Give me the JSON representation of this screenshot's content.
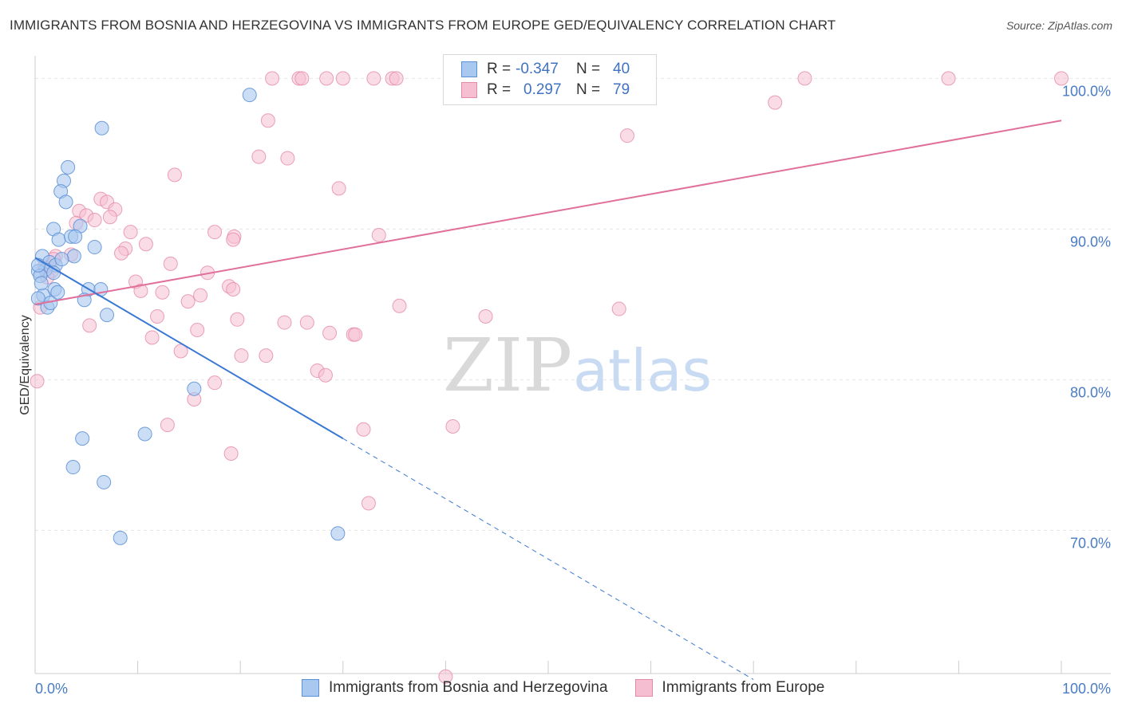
{
  "title": "IMMIGRANTS FROM BOSNIA AND HERZEGOVINA VS IMMIGRANTS FROM EUROPE GED/EQUIVALENCY CORRELATION CHART",
  "source": "Source: ZipAtlas.com",
  "watermark": {
    "zip": "ZIP",
    "atlas": "atlas"
  },
  "legend": {
    "rows": [
      {
        "r_label": "R =",
        "r_value": "-0.347",
        "n_label": "N =",
        "n_value": "40"
      },
      {
        "r_label": "R =",
        "r_value": "0.297",
        "n_label": "N =",
        "n_value": "79"
      }
    ]
  },
  "bottom_legend": {
    "blue": "Immigrants from Bosnia and Herzegovina",
    "pink": "Immigrants from Europe"
  },
  "colors": {
    "blue_fill": "#a9c8f0",
    "blue_stroke": "#5b8fd6",
    "blue_line": "#3a78d4",
    "pink_fill": "#f6bfd1",
    "pink_stroke": "#e589a8",
    "pink_line": "#e0709a",
    "grid": "#e6e6e6",
    "axis_text": "#4a7cc4"
  },
  "chart_data": {
    "type": "scatter",
    "title": "IMMIGRANTS FROM BOSNIA AND HERZEGOVINA VS IMMIGRANTS FROM EUROPE GED/EQUIVALENCY CORRELATION CHART",
    "xlabel": "",
    "ylabel": "GED/Equivalency",
    "xlim": [
      0,
      100
    ],
    "ylim": [
      60.5,
      101.5
    ],
    "x_tick_labels": [
      "0.0%",
      "100.0%"
    ],
    "y_ticks": [
      70,
      80,
      90,
      100
    ],
    "y_tick_labels": [
      "70.0%",
      "80.0%",
      "90.0%",
      "100.0%"
    ],
    "grid": true,
    "legend_position": "top-center",
    "series": [
      {
        "name": "Immigrants from Bosnia and Herzegovina",
        "color": "#a9c8f0",
        "r": -0.347,
        "n": 40,
        "trend": {
          "x0": 0.0,
          "y0": 88.1,
          "x1": 30.0,
          "y1": 76.1,
          "dash_to_x": 70.0,
          "dash_to_y": 60.1
        },
        "points": [
          [
            20.9,
            98.9
          ],
          [
            6.5,
            96.7
          ],
          [
            3.2,
            94.1
          ],
          [
            2.8,
            93.2
          ],
          [
            2.5,
            92.5
          ],
          [
            3.0,
            91.8
          ],
          [
            1.8,
            90.0
          ],
          [
            4.4,
            90.2
          ],
          [
            2.3,
            89.3
          ],
          [
            3.5,
            89.5
          ],
          [
            3.9,
            89.5
          ],
          [
            5.8,
            88.8
          ],
          [
            3.8,
            88.2
          ],
          [
            0.7,
            88.2
          ],
          [
            1.4,
            87.8
          ],
          [
            2.0,
            87.6
          ],
          [
            1.0,
            87.3
          ],
          [
            1.8,
            87.1
          ],
          [
            0.3,
            87.2
          ],
          [
            0.5,
            86.9
          ],
          [
            1.9,
            86.0
          ],
          [
            2.2,
            85.8
          ],
          [
            5.2,
            86.0
          ],
          [
            6.4,
            86.0
          ],
          [
            0.8,
            85.6
          ],
          [
            0.3,
            85.4
          ],
          [
            4.8,
            85.3
          ],
          [
            1.2,
            84.8
          ],
          [
            7.0,
            84.3
          ],
          [
            15.5,
            79.4
          ],
          [
            10.7,
            76.4
          ],
          [
            4.6,
            76.1
          ],
          [
            3.7,
            74.2
          ],
          [
            6.7,
            73.2
          ],
          [
            8.3,
            69.5
          ],
          [
            29.5,
            69.8
          ],
          [
            0.3,
            87.6
          ],
          [
            2.6,
            88.0
          ],
          [
            0.6,
            86.4
          ],
          [
            1.5,
            85.1
          ]
        ]
      },
      {
        "name": "Immigrants from Europe",
        "color": "#f6bfd1",
        "r": 0.297,
        "n": 79,
        "trend": {
          "x0": 0.0,
          "y0": 85.0,
          "x1": 100.0,
          "y1": 97.2
        },
        "points": [
          [
            23.1,
            100.0
          ],
          [
            25.7,
            100.0
          ],
          [
            26.0,
            100.0
          ],
          [
            28.4,
            100.0
          ],
          [
            30.0,
            100.0
          ],
          [
            33.0,
            100.0
          ],
          [
            34.8,
            100.0
          ],
          [
            35.2,
            100.0
          ],
          [
            47.0,
            100.0
          ],
          [
            47.8,
            100.0
          ],
          [
            75.0,
            100.0
          ],
          [
            89.0,
            100.0
          ],
          [
            100.0,
            100.0
          ],
          [
            72.1,
            98.4
          ],
          [
            22.7,
            97.2
          ],
          [
            57.7,
            96.2
          ],
          [
            21.8,
            94.8
          ],
          [
            24.6,
            94.7
          ],
          [
            13.6,
            93.6
          ],
          [
            29.6,
            92.7
          ],
          [
            6.4,
            92.0
          ],
          [
            7.0,
            91.8
          ],
          [
            7.8,
            91.3
          ],
          [
            4.3,
            91.2
          ],
          [
            5.0,
            90.9
          ],
          [
            5.8,
            90.6
          ],
          [
            4.0,
            90.4
          ],
          [
            7.3,
            90.8
          ],
          [
            9.3,
            89.8
          ],
          [
            17.5,
            89.8
          ],
          [
            19.4,
            89.5
          ],
          [
            33.5,
            89.6
          ],
          [
            19.3,
            89.3
          ],
          [
            10.8,
            89.0
          ],
          [
            8.8,
            88.7
          ],
          [
            8.4,
            88.4
          ],
          [
            3.5,
            88.3
          ],
          [
            2.0,
            88.2
          ],
          [
            13.2,
            87.7
          ],
          [
            1.6,
            87.2
          ],
          [
            16.8,
            87.1
          ],
          [
            9.8,
            86.5
          ],
          [
            18.9,
            86.2
          ],
          [
            19.3,
            86.0
          ],
          [
            10.3,
            85.9
          ],
          [
            12.4,
            85.8
          ],
          [
            16.1,
            85.6
          ],
          [
            14.9,
            85.2
          ],
          [
            35.5,
            84.9
          ],
          [
            56.9,
            84.7
          ],
          [
            11.9,
            84.2
          ],
          [
            43.9,
            84.2
          ],
          [
            19.7,
            84.0
          ],
          [
            24.3,
            83.8
          ],
          [
            26.5,
            83.8
          ],
          [
            5.3,
            83.6
          ],
          [
            15.8,
            83.3
          ],
          [
            28.7,
            83.1
          ],
          [
            31.0,
            83.0
          ],
          [
            31.2,
            83.0
          ],
          [
            11.4,
            82.8
          ],
          [
            14.2,
            81.9
          ],
          [
            20.1,
            81.6
          ],
          [
            22.5,
            81.6
          ],
          [
            27.5,
            80.6
          ],
          [
            28.3,
            80.3
          ],
          [
            17.5,
            79.8
          ],
          [
            15.5,
            78.7
          ],
          [
            12.9,
            77.0
          ],
          [
            40.7,
            76.9
          ],
          [
            32.0,
            76.7
          ],
          [
            19.1,
            75.1
          ],
          [
            32.5,
            71.8
          ],
          [
            40.0,
            60.3
          ],
          [
            1.2,
            86.8
          ],
          [
            0.5,
            84.8
          ],
          [
            0.2,
            79.9
          ],
          [
            1.8,
            88.0
          ],
          [
            0.9,
            87.5
          ]
        ]
      }
    ]
  }
}
